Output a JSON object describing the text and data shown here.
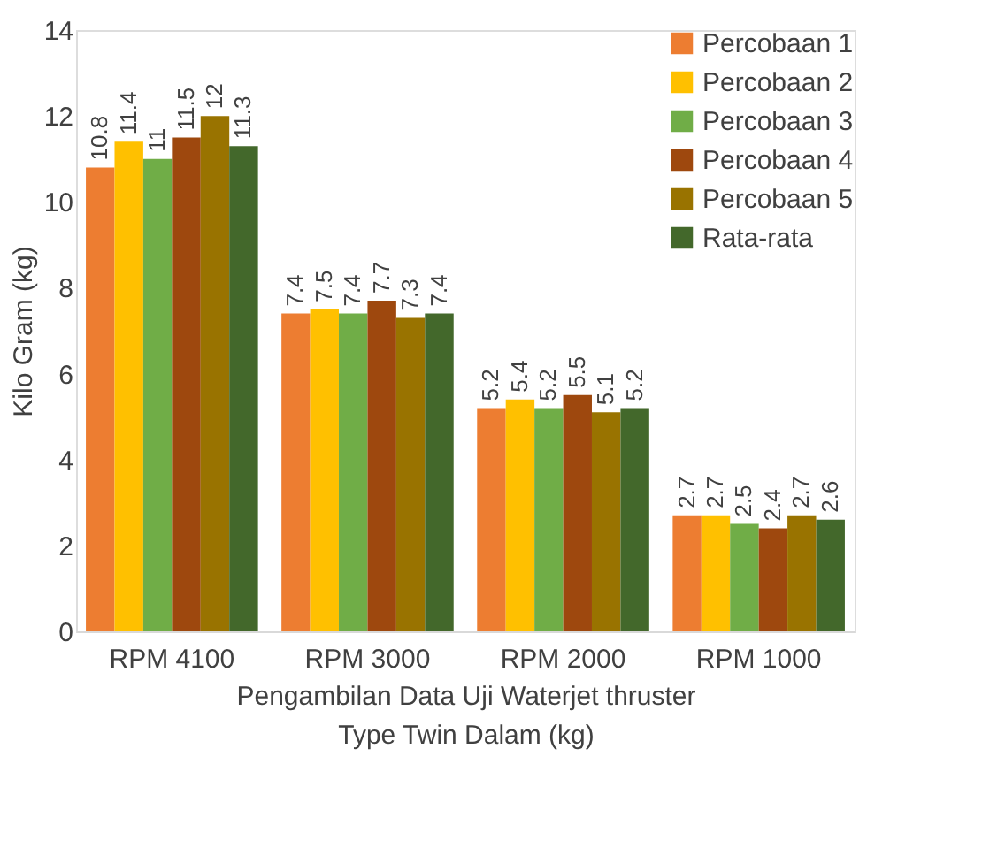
{
  "chart_data": {
    "type": "bar",
    "xlabel": "Pengambilan Data Uji Waterjet thruster Type Twin Dalam (kg)",
    "ylabel": "Kilo Gram (kg)",
    "categories": [
      "RPM 4100",
      "RPM 3000",
      "RPM 2000",
      "RPM 1000"
    ],
    "series": [
      {
        "name": "Percobaan 1",
        "color": "#ed7d31",
        "values": [
          10.8,
          7.4,
          5.2,
          2.7
        ]
      },
      {
        "name": "Percobaan 2",
        "color": "#ffc000",
        "values": [
          11.4,
          7.5,
          5.4,
          2.7
        ]
      },
      {
        "name": "Percobaan 3",
        "color": "#70ad47",
        "values": [
          11,
          7.4,
          5.2,
          2.5
        ]
      },
      {
        "name": "Percobaan 4",
        "color": "#9e480e",
        "values": [
          11.5,
          7.7,
          5.5,
          2.4
        ]
      },
      {
        "name": "Percobaan 5",
        "color": "#997300",
        "values": [
          12,
          7.3,
          5.1,
          2.7
        ]
      },
      {
        "name": "Rata-rata",
        "color": "#43682b",
        "values": [
          11.3,
          7.4,
          5.2,
          2.6
        ]
      }
    ],
    "ylim": [
      0,
      14
    ],
    "yticks": [
      0,
      2,
      4,
      6,
      8,
      10,
      12,
      14
    ],
    "grid": false,
    "legend": "top right",
    "data_labels": true
  }
}
